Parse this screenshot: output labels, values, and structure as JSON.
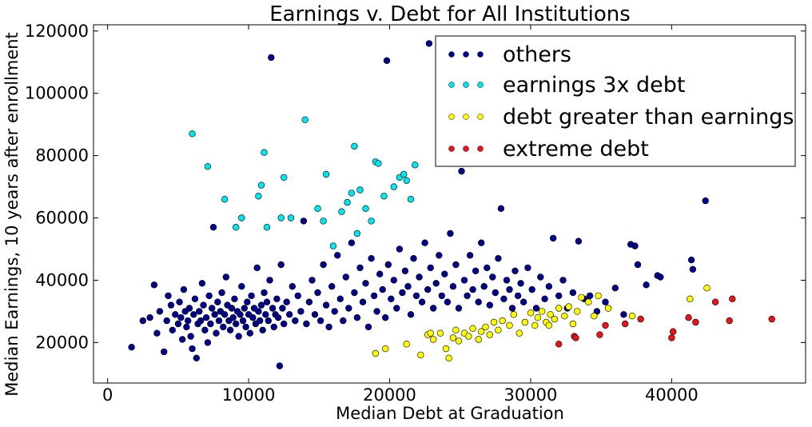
{
  "chart_data": {
    "type": "scatter",
    "title": "Earnings v. Debt for All Institutions",
    "xlabel": "Median Debt at Graduation",
    "ylabel": "Median Earnings, 10 years after enrollment",
    "xlim": [
      -1000,
      49500
    ],
    "ylim": [
      7000,
      122000
    ],
    "xticks": [
      0,
      10000,
      20000,
      30000,
      40000
    ],
    "yticks": [
      20000,
      40000,
      60000,
      80000,
      100000,
      120000
    ],
    "xtick_labels": [
      "0",
      "10000",
      "20000",
      "30000",
      "40000"
    ],
    "ytick_labels": [
      "20000",
      "40000",
      "60000",
      "80000",
      "100000",
      "120000"
    ],
    "grid": false,
    "legend_position": "top-right",
    "series": [
      {
        "name": "others",
        "color": "#00008b",
        "points": [
          [
            1700,
            18500
          ],
          [
            2500,
            27000
          ],
          [
            3000,
            28000
          ],
          [
            3300,
            38500
          ],
          [
            3500,
            23000
          ],
          [
            3700,
            30000
          ],
          [
            4000,
            17000
          ],
          [
            4200,
            27000
          ],
          [
            4300,
            35000
          ],
          [
            4500,
            32000
          ],
          [
            4600,
            24000
          ],
          [
            4800,
            29000
          ],
          [
            5000,
            26000
          ],
          [
            5100,
            33000
          ],
          [
            5200,
            28000
          ],
          [
            5300,
            21000
          ],
          [
            5400,
            37000
          ],
          [
            5500,
            30000
          ],
          [
            5600,
            25000
          ],
          [
            5700,
            27000
          ],
          [
            5800,
            31000
          ],
          [
            5900,
            22000
          ],
          [
            6000,
            18000
          ],
          [
            6100,
            29000
          ],
          [
            6200,
            34000
          ],
          [
            6300,
            15000
          ],
          [
            6400,
            26000
          ],
          [
            6500,
            30000
          ],
          [
            6600,
            27000
          ],
          [
            6700,
            39000
          ],
          [
            6800,
            32000
          ],
          [
            6900,
            24000
          ],
          [
            7000,
            28000
          ],
          [
            7100,
            20000
          ],
          [
            7200,
            35000
          ],
          [
            7300,
            26000
          ],
          [
            7400,
            31000
          ],
          [
            7500,
            57000
          ],
          [
            7600,
            29000
          ],
          [
            7700,
            23000
          ],
          [
            7800,
            33000
          ],
          [
            7900,
            27000
          ],
          [
            8000,
            30000
          ],
          [
            8100,
            36000
          ],
          [
            8200,
            25000
          ],
          [
            8300,
            29000
          ],
          [
            8400,
            41000
          ],
          [
            8500,
            32000
          ],
          [
            8600,
            27000
          ],
          [
            8700,
            24000
          ],
          [
            8800,
            31000
          ],
          [
            8900,
            28000
          ],
          [
            9000,
            34000
          ],
          [
            9100,
            26000
          ],
          [
            9200,
            30000
          ],
          [
            9300,
            22000
          ],
          [
            9400,
            29000
          ],
          [
            9500,
            38000
          ],
          [
            9600,
            27000
          ],
          [
            9700,
            31000
          ],
          [
            9800,
            25000
          ],
          [
            9900,
            33000
          ],
          [
            10000,
            29000
          ],
          [
            10100,
            23000
          ],
          [
            10200,
            35000
          ],
          [
            10300,
            28000
          ],
          [
            10400,
            31000
          ],
          [
            10500,
            26000
          ],
          [
            10600,
            44000
          ],
          [
            10700,
            30000
          ],
          [
            10800,
            27000
          ],
          [
            10900,
            32000
          ],
          [
            11000,
            24000
          ],
          [
            11100,
            36000
          ],
          [
            11200,
            29000
          ],
          [
            11300,
            33000
          ],
          [
            11400,
            27000
          ],
          [
            11500,
            40000
          ],
          [
            11600,
            111500
          ],
          [
            11700,
            31000
          ],
          [
            11800,
            25000
          ],
          [
            11900,
            29000
          ],
          [
            12000,
            34000
          ],
          [
            12100,
            28000
          ],
          [
            12200,
            12500
          ],
          [
            12300,
            45000
          ],
          [
            12400,
            31000
          ],
          [
            12500,
            26000
          ],
          [
            12700,
            33000
          ],
          [
            12900,
            29000
          ],
          [
            13100,
            38000
          ],
          [
            13300,
            27000
          ],
          [
            13500,
            35000
          ],
          [
            13700,
            30000
          ],
          [
            13900,
            59000
          ],
          [
            14100,
            26000
          ],
          [
            14300,
            33000
          ],
          [
            14500,
            40000
          ],
          [
            14700,
            29000
          ],
          [
            14900,
            36000
          ],
          [
            15100,
            27000
          ],
          [
            15300,
            45000
          ],
          [
            15500,
            32000
          ],
          [
            15700,
            25000
          ],
          [
            15900,
            38000
          ],
          [
            16100,
            30000
          ],
          [
            16300,
            48000
          ],
          [
            16500,
            34000
          ],
          [
            16700,
            27000
          ],
          [
            16900,
            41000
          ],
          [
            17100,
            31000
          ],
          [
            17300,
            52000
          ],
          [
            17500,
            36000
          ],
          [
            17700,
            28000
          ],
          [
            17900,
            44000
          ],
          [
            18100,
            33000
          ],
          [
            18300,
            39000
          ],
          [
            18500,
            25000
          ],
          [
            18700,
            47000
          ],
          [
            18900,
            35000
          ],
          [
            19100,
            30000
          ],
          [
            19300,
            42000
          ],
          [
            19500,
            37000
          ],
          [
            19700,
            28000
          ],
          [
            19800,
            110500
          ],
          [
            19900,
            45000
          ],
          [
            20100,
            34000
          ],
          [
            20300,
            40000
          ],
          [
            20500,
            31000
          ],
          [
            20700,
            50000
          ],
          [
            20900,
            36000
          ],
          [
            21100,
            43000
          ],
          [
            21300,
            38000
          ],
          [
            21500,
            29000
          ],
          [
            21700,
            47000
          ],
          [
            21900,
            35000
          ],
          [
            22100,
            41000
          ],
          [
            22300,
            33000
          ],
          [
            22500,
            52000
          ],
          [
            22700,
            37000
          ],
          [
            22800,
            116000
          ],
          [
            22900,
            44000
          ],
          [
            23100,
            31000
          ],
          [
            23300,
            39000
          ],
          [
            23500,
            48000
          ],
          [
            23700,
            35000
          ],
          [
            23900,
            42000
          ],
          [
            24100,
            33000
          ],
          [
            24300,
            55000
          ],
          [
            24500,
            38000
          ],
          [
            24700,
            45000
          ],
          [
            24900,
            31000
          ],
          [
            25100,
            75000
          ],
          [
            25300,
            40000
          ],
          [
            25500,
            35000
          ],
          [
            25700,
            48000
          ],
          [
            25900,
            37000
          ],
          [
            26100,
            43000
          ],
          [
            26300,
            33000
          ],
          [
            26500,
            52000
          ],
          [
            26700,
            38000
          ],
          [
            26900,
            44000
          ],
          [
            27100,
            32000
          ],
          [
            27300,
            41000
          ],
          [
            27500,
            36000
          ],
          [
            27700,
            47000
          ],
          [
            27900,
            63000
          ],
          [
            28100,
            34000
          ],
          [
            28300,
            40000
          ],
          [
            28500,
            37000
          ],
          [
            28700,
            31000
          ],
          [
            28900,
            43000
          ],
          [
            29100,
            35000
          ],
          [
            29300,
            39000
          ],
          [
            29500,
            33000
          ],
          [
            29800,
            44000
          ],
          [
            30100,
            37000
          ],
          [
            30400,
            31000
          ],
          [
            30700,
            41000
          ],
          [
            31000,
            34000
          ],
          [
            31300,
            38000
          ],
          [
            31600,
            53500
          ],
          [
            32000,
            35000
          ],
          [
            32300,
            40000
          ],
          [
            32600,
            31000
          ],
          [
            33000,
            36000
          ],
          [
            33400,
            52500
          ],
          [
            33800,
            34000
          ],
          [
            34200,
            35000
          ],
          [
            34700,
            30000
          ],
          [
            35300,
            33000
          ],
          [
            36000,
            37500
          ],
          [
            36600,
            29000
          ],
          [
            37100,
            51500
          ],
          [
            37400,
            51000
          ],
          [
            37600,
            45000
          ],
          [
            38200,
            38500
          ],
          [
            39000,
            41500
          ],
          [
            39200,
            41000
          ],
          [
            41400,
            46500
          ],
          [
            41500,
            43500
          ],
          [
            42400,
            65500
          ]
        ]
      },
      {
        "name": "earnings 3x debt",
        "color": "#00e5ee",
        "points": [
          [
            6000,
            87000
          ],
          [
            7100,
            76500
          ],
          [
            8300,
            66000
          ],
          [
            9100,
            57000
          ],
          [
            9500,
            60000
          ],
          [
            10700,
            67000
          ],
          [
            10900,
            70500
          ],
          [
            11100,
            81000
          ],
          [
            11300,
            57000
          ],
          [
            12300,
            60000
          ],
          [
            12500,
            73000
          ],
          [
            13000,
            60000
          ],
          [
            14000,
            91500
          ],
          [
            14900,
            63000
          ],
          [
            15300,
            59000
          ],
          [
            15500,
            74000
          ],
          [
            16000,
            51000
          ],
          [
            16600,
            62000
          ],
          [
            17000,
            65000
          ],
          [
            17300,
            68000
          ],
          [
            17500,
            83000
          ],
          [
            17700,
            55000
          ],
          [
            17900,
            69000
          ],
          [
            18300,
            63000
          ],
          [
            18700,
            59000
          ],
          [
            19000,
            78000
          ],
          [
            19200,
            77500
          ],
          [
            19600,
            67000
          ],
          [
            20300,
            70000
          ],
          [
            20700,
            73000
          ],
          [
            21000,
            74000
          ],
          [
            21200,
            72000
          ],
          [
            21500,
            66000
          ],
          [
            21800,
            77000
          ]
        ]
      },
      {
        "name": "debt greater than earnings",
        "color": "#ffff00",
        "points": [
          [
            19000,
            16500
          ],
          [
            19700,
            18000
          ],
          [
            21200,
            19500
          ],
          [
            22200,
            16000
          ],
          [
            22700,
            22500
          ],
          [
            23100,
            21000
          ],
          [
            23600,
            23000
          ],
          [
            24000,
            18000
          ],
          [
            24500,
            21500
          ],
          [
            24700,
            24000
          ],
          [
            24900,
            20500
          ],
          [
            25300,
            23000
          ],
          [
            25600,
            22000
          ],
          [
            25900,
            24500
          ],
          [
            26300,
            21000
          ],
          [
            26500,
            23500
          ],
          [
            26800,
            25000
          ],
          [
            27100,
            22500
          ],
          [
            27400,
            26500
          ],
          [
            27700,
            24000
          ],
          [
            28000,
            27000
          ],
          [
            28500,
            25500
          ],
          [
            28800,
            29000
          ],
          [
            29200,
            23000
          ],
          [
            29600,
            26500
          ],
          [
            30000,
            29500
          ],
          [
            30300,
            25500
          ],
          [
            30500,
            28000
          ],
          [
            30800,
            30000
          ],
          [
            31100,
            26500
          ],
          [
            31400,
            29000
          ],
          [
            31700,
            27500
          ],
          [
            32000,
            31000
          ],
          [
            32400,
            28500
          ],
          [
            32700,
            31500
          ],
          [
            33000,
            26000
          ],
          [
            33300,
            30000
          ],
          [
            33600,
            34500
          ],
          [
            34100,
            33000
          ],
          [
            34500,
            28500
          ],
          [
            34800,
            35000
          ],
          [
            35500,
            31000
          ],
          [
            37200,
            28500
          ],
          [
            41300,
            34000
          ],
          [
            42500,
            37500
          ],
          [
            24200,
            15000
          ],
          [
            22900,
            23000
          ],
          [
            31300,
            25500
          ]
        ]
      },
      {
        "name": "extreme debt",
        "color": "#e8141c",
        "points": [
          [
            32000,
            19500
          ],
          [
            33100,
            22000
          ],
          [
            33200,
            21500
          ],
          [
            34900,
            22500
          ],
          [
            35300,
            25500
          ],
          [
            36700,
            26000
          ],
          [
            37800,
            27500
          ],
          [
            40000,
            21500
          ],
          [
            40100,
            23500
          ],
          [
            41200,
            28000
          ],
          [
            41700,
            26500
          ],
          [
            43100,
            33000
          ],
          [
            44100,
            27000
          ],
          [
            44300,
            34000
          ],
          [
            47100,
            27500
          ]
        ]
      }
    ]
  }
}
